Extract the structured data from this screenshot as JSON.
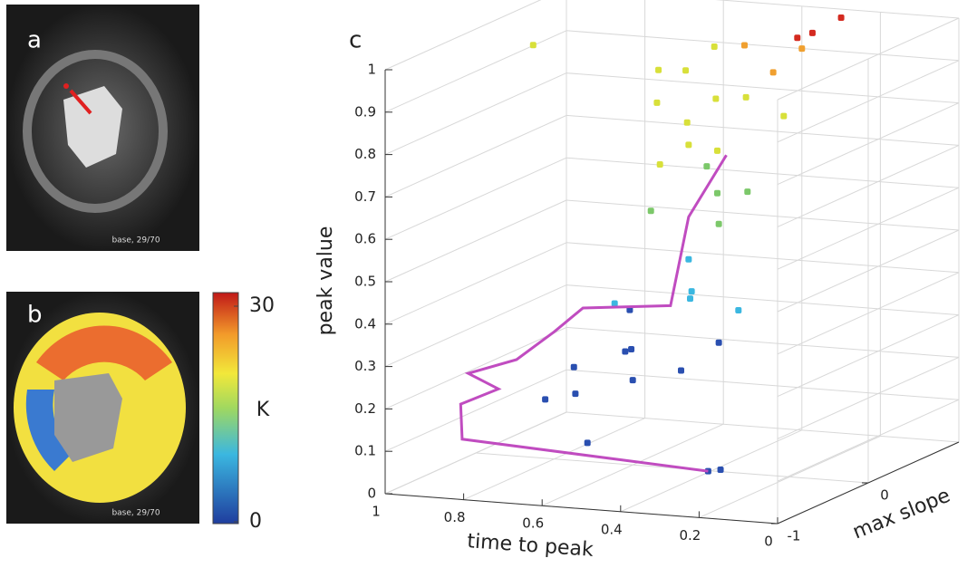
{
  "panels": {
    "a": {
      "label": "a",
      "caption": "base, 29/70"
    },
    "b": {
      "label": "b",
      "caption": "base, 29/70"
    }
  },
  "colorbar": {
    "label": "K",
    "clim": [
      0,
      30
    ],
    "ticks": [
      0,
      30
    ]
  },
  "chart_data": {
    "type": "scatter3d",
    "label": "c",
    "xlabel": "time to peak",
    "ylabel": "max slope",
    "zlabel": "peak value",
    "xlim": [
      0,
      1
    ],
    "xticks": [
      0,
      0.2,
      0.4,
      0.6,
      0.8,
      1
    ],
    "ylim": [
      -1,
      1
    ],
    "yticks": [
      -1,
      0
    ],
    "zlim": [
      0,
      1
    ],
    "zticks": [
      0,
      0.1,
      0.2,
      0.3,
      0.4,
      0.5,
      0.6,
      0.7,
      0.8,
      0.9,
      1
    ],
    "grid": true,
    "series": [
      {
        "color": "#2a4fb0",
        "x": [
          0.75,
          0.7,
          0.65,
          0.6,
          0.55,
          0.5,
          0.45,
          0.7,
          0.8,
          0.2,
          0.18,
          0.6
        ],
        "y": [
          0,
          -0.2,
          0.2,
          0,
          -0.3,
          0.1,
          0.3,
          0.4,
          -0.1,
          -0.9,
          -0.85,
          -0.5
        ],
        "z": [
          0.22,
          0.18,
          0.25,
          0.2,
          0.3,
          0.22,
          0.27,
          0.32,
          0.15,
          0.1,
          0.1,
          0.1
        ]
      },
      {
        "color": "#3bb7e0",
        "x": [
          0.5,
          0.45,
          0.55,
          0.6,
          0.4
        ],
        "y": [
          0.2,
          0,
          0.4,
          -0.2,
          0.3
        ],
        "z": [
          0.38,
          0.42,
          0.45,
          0.4,
          0.35
        ]
      },
      {
        "color": "#7cc86a",
        "x": [
          0.5,
          0.45,
          0.55,
          0.4,
          0.6
        ],
        "y": [
          0.5,
          0.3,
          0.6,
          0.4,
          0.2
        ],
        "z": [
          0.6,
          0.55,
          0.65,
          0.62,
          0.58
        ]
      },
      {
        "color": "#d8e03a",
        "x": [
          0.6,
          0.55,
          0.65,
          0.5,
          0.6,
          0.55,
          0.7,
          0.45,
          0.6,
          0.65,
          0.4,
          0.9
        ],
        "y": [
          0.6,
          0.7,
          0.8,
          0.5,
          0.9,
          0.4,
          0.7,
          0.6,
          0.3,
          0.5,
          0.8,
          0.2
        ],
        "z": [
          0.75,
          0.8,
          0.85,
          0.7,
          0.9,
          0.72,
          0.78,
          0.82,
          0.68,
          0.88,
          0.76,
          0.95
        ]
      },
      {
        "color": "#f0a030",
        "x": [
          0.45,
          0.4,
          0.5
        ],
        "y": [
          0.9,
          1,
          0.8
        ],
        "z": [
          0.85,
          0.9,
          0.92
        ]
      },
      {
        "color": "#d42a20",
        "x": [
          0.35,
          0.3,
          0.4
        ],
        "y": [
          0.9,
          1,
          0.95
        ],
        "z": [
          0.95,
          0.98,
          0.93
        ]
      }
    ],
    "line": {
      "color": "#c04cc0",
      "x": [
        0.2,
        0.85,
        0.9,
        0.85,
        0.95,
        0.85,
        0.8,
        0.75,
        0.55,
        0.55,
        0.5
      ],
      "y": [
        -0.9,
        -0.8,
        -0.6,
        -0.4,
        -0.3,
        -0.2,
        0,
        0.1,
        0.2,
        0.4,
        0.6
      ],
      "z": [
        0.1,
        0.12,
        0.18,
        0.2,
        0.22,
        0.25,
        0.3,
        0.35,
        0.36,
        0.55,
        0.68
      ]
    }
  }
}
